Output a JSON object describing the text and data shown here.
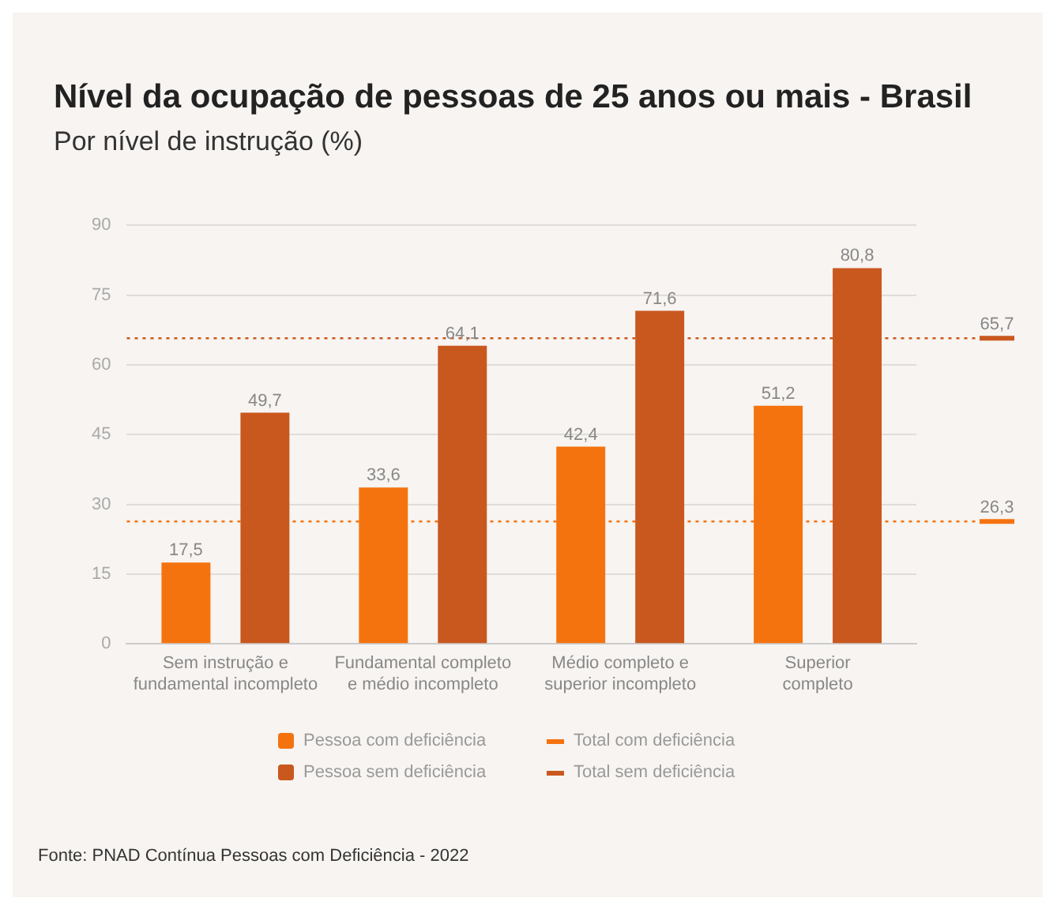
{
  "chart_data": {
    "type": "bar",
    "title": "Nível da ocupação de pessoas de 25 anos ou mais - Brasil",
    "subtitle": "Por nível de instrução (%)",
    "categories": [
      "Sem instrução e fundamental incompleto",
      "Fundamental completo e médio incompleto",
      "Médio completo e superior incompleto",
      "Superior completo"
    ],
    "series": [
      {
        "name": "Pessoa com deficiência",
        "color": "#f5730f",
        "values": [
          17.5,
          33.6,
          42.4,
          51.2
        ],
        "value_labels": [
          "17,5",
          "33,6",
          "42,4",
          "51,2"
        ]
      },
      {
        "name": "Pessoa sem deficiência",
        "color": "#c9581f",
        "values": [
          49.7,
          64.1,
          71.6,
          80.8
        ],
        "value_labels": [
          "49,7",
          "64,1",
          "71,6",
          "80,8"
        ]
      }
    ],
    "ylim": [
      0,
      90
    ],
    "yticks": [
      0,
      15,
      30,
      45,
      60,
      75,
      90
    ],
    "grid": "y",
    "legend": "bottom",
    "ref_lines": [
      {
        "axis": "y",
        "value": 26.3,
        "label": "Total com deficiência",
        "color": "#f5730f",
        "line_style": "dotted"
      },
      {
        "axis": "y",
        "value": 65.7,
        "label": "Total sem deficiência",
        "color": "#c9581f",
        "line_style": "dotted"
      }
    ],
    "annotations": [
      "26,3",
      "65,7",
      "Fonte: PNAD Contínua Pessoas com Deficiência - 2022"
    ]
  }
}
